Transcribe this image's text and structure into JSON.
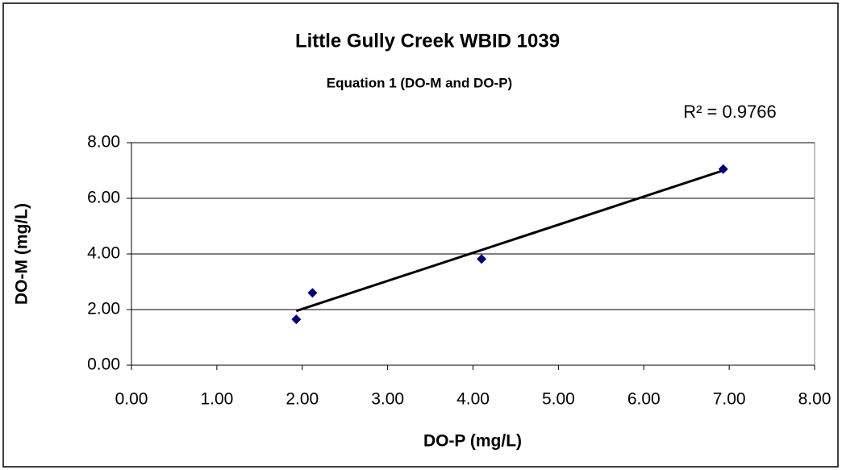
{
  "chart_data": {
    "type": "scatter",
    "title": "Little Gully Creek WBID 1039",
    "subtitle": "Equation 1 (DO-M and DO-P)",
    "annotation": "R² = 0.9766",
    "x_label": "DO-P (mg/L)",
    "y_label": "DO-M (mg/L)",
    "series": [
      {
        "name": "DO-M",
        "color": "#000080",
        "x": [
          1.93,
          2.12,
          4.1,
          6.93
        ],
        "values": [
          1.65,
          2.6,
          3.82,
          7.05
        ]
      }
    ],
    "trendline": {
      "color": "#000000",
      "x": [
        1.93,
        6.93
      ],
      "values": [
        1.95,
        7.0
      ]
    },
    "xlim": [
      0,
      8
    ],
    "ylim": [
      0,
      8
    ],
    "xticks": [
      {
        "value": 0,
        "label": "0.00"
      },
      {
        "value": 1,
        "label": "1.00"
      },
      {
        "value": 2,
        "label": "2.00"
      },
      {
        "value": 3,
        "label": "3.00"
      },
      {
        "value": 4,
        "label": "4.00"
      },
      {
        "value": 5,
        "label": "5.00"
      },
      {
        "value": 6,
        "label": "6.00"
      },
      {
        "value": 7,
        "label": "7.00"
      },
      {
        "value": 8,
        "label": "8.00"
      }
    ],
    "yticks": [
      {
        "value": 0,
        "label": "0.00"
      },
      {
        "value": 2,
        "label": "2.00"
      },
      {
        "value": 4,
        "label": "4.00"
      },
      {
        "value": 6,
        "label": "6.00"
      },
      {
        "value": 8,
        "label": "8.00"
      }
    ],
    "grid": true
  }
}
